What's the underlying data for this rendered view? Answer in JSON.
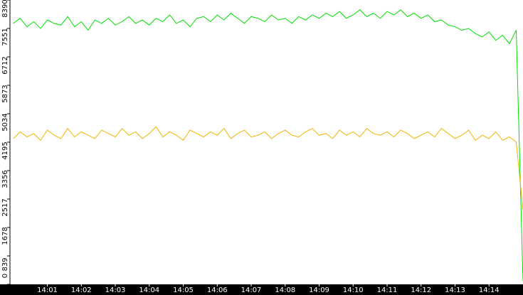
{
  "chart_data": {
    "type": "line",
    "x": [
      840.0,
      840.2,
      840.4,
      840.6,
      840.8,
      841.0,
      841.2,
      841.4,
      841.6,
      841.8,
      842.0,
      842.2,
      842.4,
      842.6,
      842.8,
      843.0,
      843.2,
      843.4,
      843.6,
      843.8,
      844.0,
      844.2,
      844.4,
      844.6,
      844.8,
      845.0,
      845.2,
      845.4,
      845.6,
      845.8,
      846.0,
      846.2,
      846.4,
      846.6,
      846.8,
      847.0,
      847.2,
      847.4,
      847.6,
      847.8,
      848.0,
      848.2,
      848.4,
      848.6,
      848.8,
      849.0,
      849.2,
      849.4,
      849.6,
      849.8,
      850.0,
      850.2,
      850.4,
      850.6,
      850.8,
      851.0,
      851.2,
      851.4,
      851.6,
      851.8,
      852.0,
      852.2,
      852.4,
      852.6,
      852.8,
      853.0,
      853.2,
      853.4,
      853.6,
      853.8,
      854.0,
      854.2,
      854.4,
      854.6,
      854.8,
      855.0
    ],
    "series": [
      {
        "color": "#00dd00",
        "values": [
          7700,
          7850,
          7600,
          7750,
          7550,
          7800,
          7700,
          7650,
          7900,
          7600,
          7750,
          7500,
          7800,
          7700,
          7850,
          7650,
          7750,
          7900,
          7700,
          7800,
          7650,
          7850,
          7750,
          7950,
          7700,
          7800,
          7600,
          7850,
          7900,
          7750,
          7950,
          7800,
          8000,
          7850,
          7700,
          7900,
          7850,
          7750,
          7950,
          7800,
          7850,
          7700,
          7900,
          7800,
          7950,
          7850,
          8000,
          7900,
          8050,
          7850,
          7950,
          8100,
          7900,
          8000,
          7850,
          8050,
          7950,
          8100,
          7900,
          8000,
          7850,
          7950,
          7750,
          7800,
          7650,
          7600,
          7500,
          7550,
          7400,
          7300,
          7450,
          7200,
          7350,
          7100,
          7500,
          100
        ]
      },
      {
        "color": "#f0b400",
        "values": [
          4300,
          4500,
          4350,
          4450,
          4250,
          4550,
          4400,
          4300,
          4600,
          4350,
          4500,
          4400,
          4300,
          4550,
          4450,
          4350,
          4600,
          4400,
          4500,
          4300,
          4450,
          4650,
          4350,
          4500,
          4400,
          4250,
          4550,
          4450,
          4350,
          4500,
          4400,
          4600,
          4300,
          4450,
          4550,
          4350,
          4400,
          4500,
          4300,
          4450,
          4550,
          4400,
          4350,
          4500,
          4600,
          4400,
          4450,
          4300,
          4550,
          4400,
          4500,
          4350,
          4600,
          4450,
          4400,
          4500,
          4350,
          4550,
          4450,
          4300,
          4400,
          4500,
          4350,
          4600,
          4450,
          4300,
          4400,
          4550,
          4250,
          4400,
          4300,
          4500,
          4250,
          4350,
          4200,
          2200
        ]
      }
    ],
    "xlim": [
      839.9,
      855.0
    ],
    "xticks": [
      {
        "value": 841,
        "label": "14:01"
      },
      {
        "value": 842,
        "label": "14:02"
      },
      {
        "value": 843,
        "label": "14:03"
      },
      {
        "value": 844,
        "label": "14:04"
      },
      {
        "value": 845,
        "label": "14:05"
      },
      {
        "value": 846,
        "label": "14:06"
      },
      {
        "value": 847,
        "label": "14:07"
      },
      {
        "value": 848,
        "label": "14:08"
      },
      {
        "value": 849,
        "label": "14:09"
      },
      {
        "value": 850,
        "label": "14:10"
      },
      {
        "value": 851,
        "label": "14:11"
      },
      {
        "value": 852,
        "label": "14:12"
      },
      {
        "value": 853,
        "label": "14:13"
      },
      {
        "value": 854,
        "label": "14:14"
      }
    ],
    "ylim": [
      0,
      8390
    ],
    "yticks": [
      0,
      839,
      1678,
      2517,
      3356,
      4195,
      5034,
      5873,
      6712,
      7551,
      8390
    ]
  }
}
